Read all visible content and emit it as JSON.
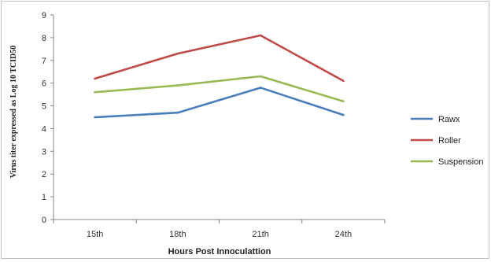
{
  "chart_data": {
    "type": "line",
    "title": "",
    "xlabel": "Hours Post Innoculattion",
    "ylabel": "Virus titer expressed as Log 10 TCID50",
    "categories": [
      "15th",
      "18th",
      "21th",
      "24th"
    ],
    "ylim": [
      0,
      9
    ],
    "yticks": [
      "0",
      "1",
      "2",
      "3",
      "4",
      "5",
      "6",
      "7",
      "8",
      "9"
    ],
    "grid": false,
    "legend_position": "right",
    "series": [
      {
        "name": "Rawx",
        "color": "#4a7ebb",
        "values": [
          4.5,
          4.7,
          5.8,
          4.6
        ]
      },
      {
        "name": "Roller",
        "color": "#be4b48",
        "values": [
          6.2,
          7.3,
          8.1,
          6.1
        ]
      },
      {
        "name": "Suspension",
        "color": "#98b954",
        "values": [
          5.6,
          5.9,
          6.3,
          5.2
        ]
      }
    ]
  }
}
